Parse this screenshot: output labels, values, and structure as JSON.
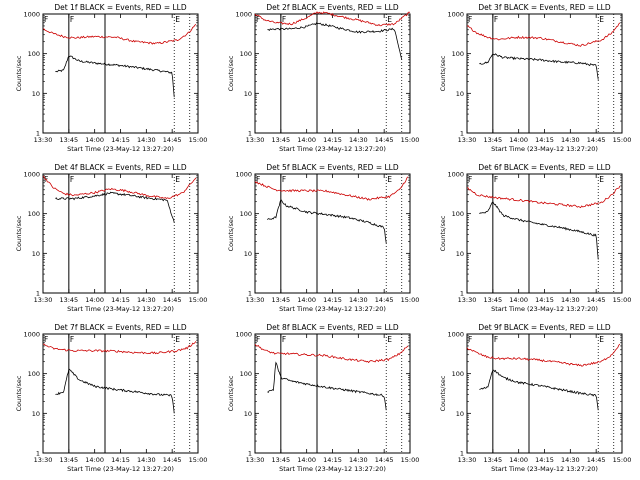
{
  "chart_data": [
    {
      "type": "line",
      "title": "Det 1f BLACK = Events, RED = LLD",
      "markers": [
        "F",
        "F",
        "E"
      ],
      "series": [
        {
          "name": "Events",
          "color": "#000000",
          "start": 13.62,
          "end": 14.77,
          "values": [
            [
              13.62,
              35
            ],
            [
              13.7,
              38
            ],
            [
              13.75,
              90
            ],
            [
              13.85,
              65
            ],
            [
              14.0,
              58
            ],
            [
              14.2,
              52
            ],
            [
              14.4,
              45
            ],
            [
              14.6,
              38
            ],
            [
              14.75,
              33
            ],
            [
              14.77,
              8
            ]
          ]
        },
        {
          "name": "LLD",
          "color": "#cc0000",
          "start": 13.5,
          "end": 14.98,
          "values": [
            [
              13.5,
              420
            ],
            [
              13.6,
              320
            ],
            [
              13.7,
              270
            ],
            [
              13.8,
              250
            ],
            [
              14.0,
              270
            ],
            [
              14.2,
              260
            ],
            [
              14.4,
              200
            ],
            [
              14.6,
              180
            ],
            [
              14.8,
              220
            ],
            [
              14.9,
              320
            ],
            [
              14.98,
              550
            ]
          ]
        }
      ]
    },
    {
      "type": "line",
      "title": "Det 2f BLACK = Events, RED = LLD",
      "markers": [
        "F",
        "F",
        "E"
      ],
      "series": [
        {
          "name": "Events",
          "color": "#000000",
          "start": 13.62,
          "end": 14.92,
          "values": [
            [
              13.62,
              400
            ],
            [
              13.7,
              420
            ],
            [
              13.85,
              420
            ],
            [
              14.0,
              480
            ],
            [
              14.1,
              580
            ],
            [
              14.2,
              520
            ],
            [
              14.3,
              450
            ],
            [
              14.5,
              350
            ],
            [
              14.7,
              370
            ],
            [
              14.85,
              420
            ],
            [
              14.92,
              70
            ]
          ]
        },
        {
          "name": "LLD",
          "color": "#cc0000",
          "start": 13.5,
          "end": 15.0,
          "values": [
            [
              13.5,
              1000
            ],
            [
              13.6,
              700
            ],
            [
              13.7,
              600
            ],
            [
              13.85,
              560
            ],
            [
              14.0,
              800
            ],
            [
              14.1,
              1100
            ],
            [
              14.2,
              1050
            ],
            [
              14.3,
              900
            ],
            [
              14.5,
              700
            ],
            [
              14.7,
              520
            ],
            [
              14.85,
              560
            ],
            [
              14.95,
              900
            ],
            [
              15.0,
              1100
            ]
          ]
        }
      ]
    },
    {
      "type": "line",
      "title": "Det 3f BLACK = Events, RED = LLD",
      "markers": [
        "F",
        "F",
        "E"
      ],
      "series": [
        {
          "name": "Events",
          "color": "#000000",
          "start": 13.62,
          "end": 14.77,
          "values": [
            [
              13.62,
              55
            ],
            [
              13.7,
              60
            ],
            [
              13.75,
              100
            ],
            [
              13.85,
              80
            ],
            [
              14.0,
              75
            ],
            [
              14.2,
              70
            ],
            [
              14.4,
              62
            ],
            [
              14.6,
              58
            ],
            [
              14.75,
              50
            ],
            [
              14.77,
              22
            ]
          ]
        },
        {
          "name": "LLD",
          "color": "#cc0000",
          "start": 13.5,
          "end": 14.98,
          "values": [
            [
              13.5,
              500
            ],
            [
              13.6,
              330
            ],
            [
              13.7,
              260
            ],
            [
              13.8,
              230
            ],
            [
              14.0,
              260
            ],
            [
              14.2,
              250
            ],
            [
              14.4,
              200
            ],
            [
              14.6,
              160
            ],
            [
              14.8,
              220
            ],
            [
              14.9,
              330
            ],
            [
              14.98,
              600
            ]
          ]
        }
      ]
    },
    {
      "type": "line",
      "title": "Det 4f BLACK = Events, RED = LLD",
      "markers": [
        "F",
        "F",
        "E"
      ],
      "series": [
        {
          "name": "Events",
          "color": "#000000",
          "start": 13.62,
          "end": 14.77,
          "values": [
            [
              13.62,
              240
            ],
            [
              13.8,
              240
            ],
            [
              14.0,
              280
            ],
            [
              14.15,
              330
            ],
            [
              14.3,
              300
            ],
            [
              14.5,
              250
            ],
            [
              14.7,
              220
            ],
            [
              14.77,
              60
            ]
          ]
        },
        {
          "name": "LLD",
          "color": "#cc0000",
          "start": 13.5,
          "end": 14.98,
          "values": [
            [
              13.5,
              900
            ],
            [
              13.6,
              450
            ],
            [
              13.7,
              320
            ],
            [
              13.8,
              290
            ],
            [
              14.0,
              340
            ],
            [
              14.15,
              420
            ],
            [
              14.3,
              380
            ],
            [
              14.5,
              290
            ],
            [
              14.7,
              240
            ],
            [
              14.85,
              330
            ],
            [
              14.98,
              800
            ]
          ]
        }
      ]
    },
    {
      "type": "line",
      "title": "Det 5f BLACK = Events, RED = LLD",
      "markers": [
        "F",
        "F",
        "E"
      ],
      "series": [
        {
          "name": "Events",
          "color": "#000000",
          "start": 13.62,
          "end": 14.77,
          "values": [
            [
              13.62,
              70
            ],
            [
              13.7,
              80
            ],
            [
              13.75,
              220
            ],
            [
              13.8,
              160
            ],
            [
              14.0,
              110
            ],
            [
              14.2,
              95
            ],
            [
              14.4,
              80
            ],
            [
              14.6,
              60
            ],
            [
              14.75,
              45
            ],
            [
              14.77,
              18
            ]
          ]
        },
        {
          "name": "LLD",
          "color": "#cc0000",
          "start": 13.5,
          "end": 14.98,
          "values": [
            [
              13.5,
              650
            ],
            [
              13.6,
              500
            ],
            [
              13.7,
              400
            ],
            [
              13.8,
              380
            ],
            [
              14.0,
              380
            ],
            [
              14.2,
              370
            ],
            [
              14.4,
              290
            ],
            [
              14.6,
              230
            ],
            [
              14.8,
              270
            ],
            [
              14.9,
              400
            ],
            [
              14.98,
              850
            ]
          ]
        }
      ]
    },
    {
      "type": "line",
      "title": "Det 6f BLACK = Events, RED = LLD",
      "markers": [
        "F",
        "F",
        "E"
      ],
      "series": [
        {
          "name": "Events",
          "color": "#000000",
          "start": 13.62,
          "end": 14.77,
          "values": [
            [
              13.62,
              100
            ],
            [
              13.7,
              110
            ],
            [
              13.75,
              200
            ],
            [
              13.85,
              90
            ],
            [
              14.0,
              70
            ],
            [
              14.2,
              55
            ],
            [
              14.4,
              45
            ],
            [
              14.6,
              35
            ],
            [
              14.75,
              28
            ],
            [
              14.77,
              7
            ]
          ]
        },
        {
          "name": "LLD",
          "color": "#cc0000",
          "start": 13.5,
          "end": 14.98,
          "values": [
            [
              13.5,
              450
            ],
            [
              13.6,
              300
            ],
            [
              13.7,
              270
            ],
            [
              13.8,
              250
            ],
            [
              14.0,
              220
            ],
            [
              14.2,
              190
            ],
            [
              14.4,
              170
            ],
            [
              14.6,
              150
            ],
            [
              14.8,
              190
            ],
            [
              14.9,
              300
            ],
            [
              14.98,
              500
            ]
          ]
        }
      ]
    },
    {
      "type": "line",
      "title": "Det 7f BLACK = Events, RED = LLD",
      "markers": [
        "F",
        "F",
        "E"
      ],
      "series": [
        {
          "name": "Events",
          "color": "#000000",
          "start": 13.62,
          "end": 14.77,
          "values": [
            [
              13.62,
              30
            ],
            [
              13.7,
              35
            ],
            [
              13.75,
              130
            ],
            [
              13.85,
              70
            ],
            [
              14.0,
              48
            ],
            [
              14.2,
              40
            ],
            [
              14.4,
              35
            ],
            [
              14.6,
              30
            ],
            [
              14.75,
              28
            ],
            [
              14.77,
              10
            ]
          ]
        },
        {
          "name": "LLD",
          "color": "#cc0000",
          "start": 13.5,
          "end": 14.98,
          "values": [
            [
              13.5,
              550
            ],
            [
              13.6,
              430
            ],
            [
              13.7,
              400
            ],
            [
              13.8,
              380
            ],
            [
              14.0,
              380
            ],
            [
              14.2,
              370
            ],
            [
              14.4,
              340
            ],
            [
              14.6,
              330
            ],
            [
              14.8,
              380
            ],
            [
              14.9,
              450
            ],
            [
              14.98,
              650
            ]
          ]
        }
      ]
    },
    {
      "type": "line",
      "title": "Det 8f BLACK = Events, RED = LLD",
      "markers": [
        "F",
        "F",
        "E"
      ],
      "series": [
        {
          "name": "Events",
          "color": "#000000",
          "start": 13.62,
          "end": 14.77,
          "values": [
            [
              13.62,
              35
            ],
            [
              13.68,
              40
            ],
            [
              13.7,
              200
            ],
            [
              13.75,
              80
            ],
            [
              13.85,
              65
            ],
            [
              14.0,
              55
            ],
            [
              14.2,
              45
            ],
            [
              14.4,
              38
            ],
            [
              14.6,
              32
            ],
            [
              14.75,
              28
            ],
            [
              14.77,
              12
            ]
          ]
        },
        {
          "name": "LLD",
          "color": "#cc0000",
          "start": 13.5,
          "end": 14.98,
          "values": [
            [
              13.5,
              550
            ],
            [
              13.6,
              380
            ],
            [
              13.7,
              320
            ],
            [
              13.8,
              320
            ],
            [
              13.9,
              310
            ],
            [
              14.0,
              300
            ],
            [
              14.15,
              290
            ],
            [
              14.2,
              280
            ],
            [
              14.4,
              230
            ],
            [
              14.6,
              200
            ],
            [
              14.8,
              230
            ],
            [
              14.9,
              320
            ],
            [
              14.98,
              500
            ]
          ]
        }
      ]
    },
    {
      "type": "line",
      "title": "Det 9f BLACK = Events, RED = LLD",
      "markers": [
        "F",
        "F",
        "E"
      ],
      "series": [
        {
          "name": "Events",
          "color": "#000000",
          "start": 13.62,
          "end": 14.77,
          "values": [
            [
              13.62,
              40
            ],
            [
              13.7,
              45
            ],
            [
              13.75,
              130
            ],
            [
              13.85,
              80
            ],
            [
              14.0,
              60
            ],
            [
              14.2,
              50
            ],
            [
              14.4,
              40
            ],
            [
              14.6,
              32
            ],
            [
              14.75,
              28
            ],
            [
              14.77,
              12
            ]
          ]
        },
        {
          "name": "LLD",
          "color": "#cc0000",
          "start": 13.5,
          "end": 14.98,
          "values": [
            [
              13.5,
              450
            ],
            [
              13.6,
              330
            ],
            [
              13.7,
              260
            ],
            [
              13.8,
              240
            ],
            [
              14.0,
              240
            ],
            [
              14.2,
              220
            ],
            [
              14.4,
              190
            ],
            [
              14.6,
              160
            ],
            [
              14.8,
              200
            ],
            [
              14.9,
              300
            ],
            [
              14.98,
              560
            ]
          ]
        }
      ]
    }
  ],
  "axes": {
    "xlabel": "Start Time (23-May-12 13:27:20)",
    "ylabel": "Counts/sec",
    "x_ticks": [
      "13:30",
      "13:45",
      "14:00",
      "14:15",
      "14:30",
      "14:45",
      "15:00"
    ],
    "x_tick_hours": [
      13.5,
      13.75,
      14.0,
      14.25,
      14.5,
      14.75,
      15.0
    ],
    "xlim_hours": [
      13.5,
      15.0
    ],
    "y_ticks": [
      "1",
      "10",
      "100",
      "1000"
    ],
    "y_tick_values": [
      1,
      10,
      100,
      1000
    ],
    "ylim": [
      1,
      1000
    ],
    "y_scale": "log",
    "solid_lines_hours": [
      13.75,
      14.1
    ],
    "dotted_lines_hours": [
      14.77,
      14.92
    ],
    "marker_hours": [
      13.5,
      13.75,
      14.77
    ]
  }
}
